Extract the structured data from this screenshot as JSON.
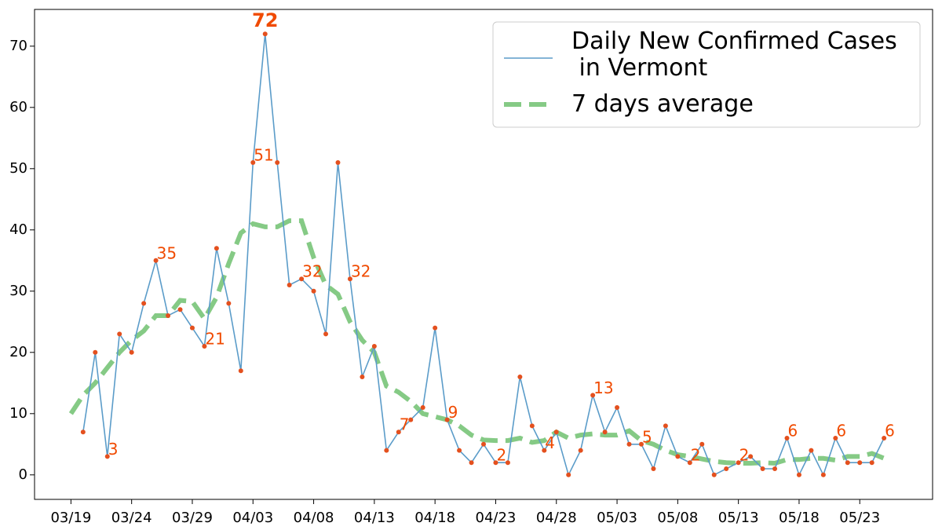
{
  "chart_data": {
    "type": "line",
    "x": [
      "03/19",
      "03/20",
      "03/21",
      "03/22",
      "03/23",
      "03/24",
      "03/25",
      "03/26",
      "03/27",
      "03/28",
      "03/29",
      "03/30",
      "03/31",
      "04/01",
      "04/02",
      "04/03",
      "04/04",
      "04/05",
      "04/06",
      "04/07",
      "04/08",
      "04/09",
      "04/10",
      "04/11",
      "04/12",
      "04/13",
      "04/14",
      "04/15",
      "04/16",
      "04/17",
      "04/18",
      "04/19",
      "04/20",
      "04/21",
      "04/22",
      "04/23",
      "04/24",
      "04/25",
      "04/26",
      "04/27",
      "04/28",
      "04/29",
      "04/30",
      "05/01",
      "05/02",
      "05/03",
      "05/04",
      "05/05",
      "05/06",
      "05/07",
      "05/08",
      "05/09",
      "05/10",
      "05/11",
      "05/12",
      "05/13",
      "05/14",
      "05/15",
      "05/16",
      "05/17",
      "05/18",
      "05/19",
      "05/20",
      "05/21",
      "05/22",
      "05/23",
      "05/24",
      "05/25"
    ],
    "series": [
      {
        "name": "Daily New Confirmed Cases\n in Vermont",
        "color": "#5b9cc9",
        "marker_color": "#e4501e",
        "values": [
          null,
          7,
          20,
          3,
          23,
          20,
          28,
          35,
          26,
          27,
          24,
          21,
          37,
          28,
          17,
          51,
          72,
          51,
          31,
          32,
          30,
          23,
          51,
          32,
          16,
          21,
          4,
          7,
          9,
          11,
          24,
          9,
          4,
          2,
          5,
          2,
          2,
          16,
          8,
          4,
          7,
          0,
          4,
          13,
          7,
          11,
          5,
          5,
          1,
          8,
          3,
          2,
          5,
          0,
          1,
          2,
          3,
          1,
          1,
          6,
          0,
          4,
          0,
          6,
          2,
          2,
          2,
          6
        ],
        "value_labels": [
          null,
          null,
          null,
          "3",
          null,
          null,
          null,
          "35",
          null,
          null,
          null,
          "21",
          null,
          null,
          null,
          "51",
          "72",
          null,
          null,
          "32",
          null,
          null,
          null,
          "32",
          null,
          null,
          null,
          "7",
          null,
          null,
          null,
          "9",
          null,
          null,
          null,
          "2",
          null,
          null,
          null,
          "4",
          null,
          null,
          null,
          "13",
          null,
          null,
          null,
          "5",
          null,
          null,
          null,
          "2",
          null,
          null,
          null,
          "2",
          null,
          null,
          null,
          "6",
          null,
          null,
          null,
          "6",
          null,
          null,
          null,
          "6"
        ],
        "label_color": "#f04a00"
      },
      {
        "name": "7 days average",
        "color": "#5cb85c",
        "dashed": true,
        "values": [
          10,
          13,
          15,
          17.5,
          20,
          22,
          23.5,
          26,
          26,
          28.5,
          28.3,
          25.5,
          29,
          34.5,
          39.5,
          41,
          40.5,
          40.5,
          41.5,
          41.5,
          35.5,
          31,
          29.5,
          25,
          22,
          20,
          14.5,
          13.5,
          12,
          10,
          9.5,
          9,
          8,
          6.5,
          5.7,
          5.6,
          5.6,
          6,
          5.3,
          5.6,
          7,
          6,
          6.5,
          6.7,
          6.5,
          6.5,
          7.2,
          5.6,
          5,
          4,
          3.3,
          3,
          2.6,
          2.2,
          2,
          1.9,
          1.9,
          2,
          1.9,
          2.5,
          2.5,
          2.7,
          2.7,
          2.4,
          3,
          3,
          3.5,
          2.7
        ]
      }
    ],
    "xlim": [
      "03/16",
      "05/29"
    ],
    "xticks": [
      "03/19",
      "03/24",
      "03/29",
      "04/03",
      "04/08",
      "04/13",
      "04/18",
      "04/23",
      "04/28",
      "05/03",
      "05/08",
      "05/13",
      "05/18",
      "05/23"
    ],
    "ylim": [
      -4,
      76
    ],
    "yticks": [
      0,
      10,
      20,
      30,
      40,
      50,
      60,
      70
    ],
    "legend": "upper right"
  }
}
